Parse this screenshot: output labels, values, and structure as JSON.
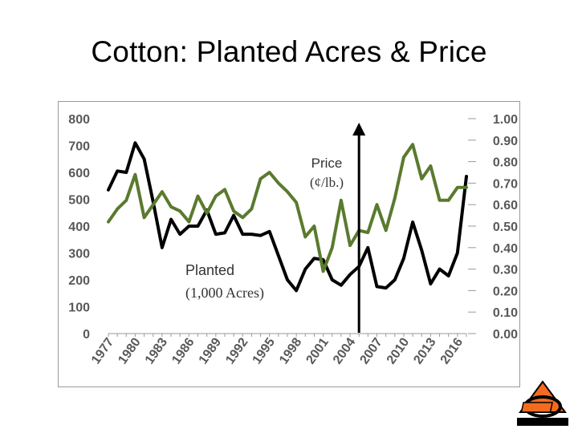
{
  "slide": {
    "title": "Cotton: Planted Acres & Price"
  },
  "chart_data": {
    "type": "line",
    "title": "Cotton: Planted Acres & Price",
    "x": [
      1977,
      1978,
      1979,
      1980,
      1981,
      1982,
      1983,
      1984,
      1985,
      1986,
      1987,
      1988,
      1989,
      1990,
      1991,
      1992,
      1993,
      1994,
      1995,
      1996,
      1997,
      1998,
      1999,
      2000,
      2001,
      2002,
      2003,
      2004,
      2005,
      2006,
      2007,
      2008,
      2009,
      2010,
      2011,
      2012,
      2013,
      2014,
      2015,
      2016,
      2017
    ],
    "x_tick_labels": [
      "1977",
      "1980",
      "1983",
      "1986",
      "1989",
      "1992",
      "1995",
      "1998",
      "2001",
      "2004",
      "2007",
      "2010",
      "2013",
      "2016"
    ],
    "left_axis": {
      "range": [
        0,
        800
      ],
      "ticks": [
        "0",
        "100",
        "200",
        "300",
        "400",
        "500",
        "600",
        "700",
        "800"
      ]
    },
    "right_axis": {
      "range": [
        0,
        1.0
      ],
      "ticks": [
        "0.00",
        "0.10",
        "0.20",
        "0.30",
        "0.40",
        "0.50",
        "0.60",
        "0.70",
        "0.80",
        "0.90",
        "1.00"
      ]
    },
    "series": [
      {
        "name": "Planted (1,000 Acres)",
        "axis": "left",
        "color": "#000000",
        "values": [
          535,
          605,
          600,
          710,
          650,
          490,
          320,
          425,
          370,
          400,
          400,
          460,
          370,
          375,
          440,
          370,
          370,
          365,
          380,
          290,
          200,
          160,
          240,
          280,
          275,
          200,
          180,
          220,
          250,
          320,
          175,
          170,
          200,
          280,
          415,
          310,
          185,
          240,
          215,
          300,
          585
        ]
      },
      {
        "name": "Price (¢/lb.)",
        "axis": "right",
        "color": "#5a7a2e",
        "values": [
          0.52,
          0.58,
          0.62,
          0.74,
          0.54,
          0.6,
          0.66,
          0.59,
          0.57,
          0.52,
          0.64,
          0.56,
          0.64,
          0.67,
          0.57,
          0.54,
          0.58,
          0.72,
          0.75,
          0.7,
          0.66,
          0.61,
          0.45,
          0.5,
          0.29,
          0.4,
          0.62,
          0.41,
          0.48,
          0.47,
          0.6,
          0.48,
          0.63,
          0.82,
          0.88,
          0.72,
          0.78,
          0.62,
          0.62,
          0.68,
          0.68
        ]
      }
    ],
    "annotations": {
      "price_label_line1": "Price",
      "price_label_line2": "(¢/lb.)",
      "planted_label_line1": "Planted",
      "planted_label_line2": "(1,000 Acres)",
      "vertical_arrow_year": 2005
    }
  }
}
